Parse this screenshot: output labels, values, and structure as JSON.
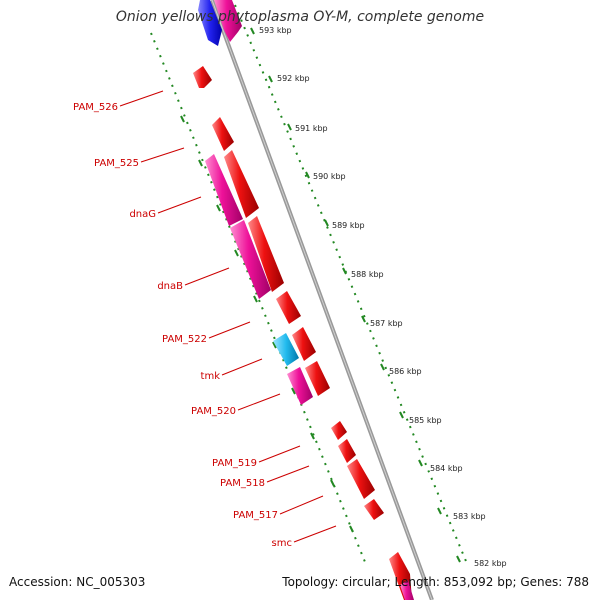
{
  "title": "Onion yellows phytoplasma OY-M, complete genome",
  "accession": "Accession: NC_005303",
  "summary": "Topology: circular; Length: 853,092 bp; Genes: 788",
  "colors": {
    "forward_gene": "#ee1111",
    "reverse_gene": "#ee1199",
    "blue_gene": "#2222ee",
    "cyan_gene": "#22bbee",
    "backbone": "#888888",
    "tick_dots": "#228822",
    "label_text": "#cc0000"
  },
  "ruler": [
    {
      "text": "593 kbp"
    },
    {
      "text": "592 kbp"
    },
    {
      "text": "591 kbp"
    },
    {
      "text": "590 kbp"
    },
    {
      "text": "589 kbp"
    },
    {
      "text": "588 kbp"
    },
    {
      "text": "587 kbp"
    },
    {
      "text": "586 kbp"
    },
    {
      "text": "585 kbp"
    },
    {
      "text": "584 kbp"
    },
    {
      "text": "583 kbp"
    },
    {
      "text": "582 kbp"
    }
  ],
  "gene_labels": [
    "PAM_526",
    "PAM_525",
    "dnaG",
    "dnaB",
    "PAM_522",
    "tmk",
    "PAM_520",
    "PAM_519",
    "PAM_518",
    "PAM_517",
    "smc"
  ]
}
